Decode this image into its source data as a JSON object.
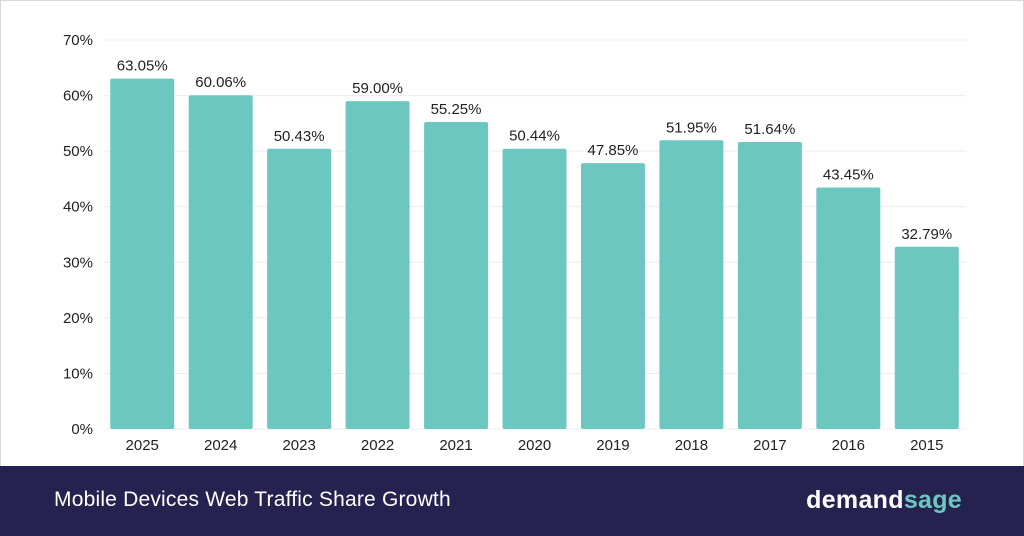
{
  "chart_data": {
    "type": "bar",
    "title": "Mobile Devices Web Traffic Share Growth",
    "categories": [
      "2025",
      "2024",
      "2023",
      "2022",
      "2021",
      "2020",
      "2019",
      "2018",
      "2017",
      "2016",
      "2015"
    ],
    "values": [
      63.05,
      60.06,
      50.43,
      59.0,
      55.25,
      50.44,
      47.85,
      51.95,
      51.64,
      43.45,
      32.79
    ],
    "value_labels": [
      "63.05%",
      "60.06%",
      "50.43%",
      "59.00%",
      "55.25%",
      "50.44%",
      "47.85%",
      "51.95%",
      "51.64%",
      "43.45%",
      "32.79%"
    ],
    "yticks": [
      "0%",
      "10%",
      "20%",
      "30%",
      "40%",
      "50%",
      "60%",
      "70%"
    ],
    "ylim": [
      0,
      70
    ],
    "grid": true,
    "bar_color": "#6dc7c1"
  },
  "footer": {
    "title": "Mobile Devices Web Traffic Share Growth",
    "brand_part1": "demand",
    "brand_part2": "sage"
  },
  "colors": {
    "footer_bg": "#25224f",
    "bar": "#6dc7c1",
    "brand_accent": "#6dc7c1"
  }
}
